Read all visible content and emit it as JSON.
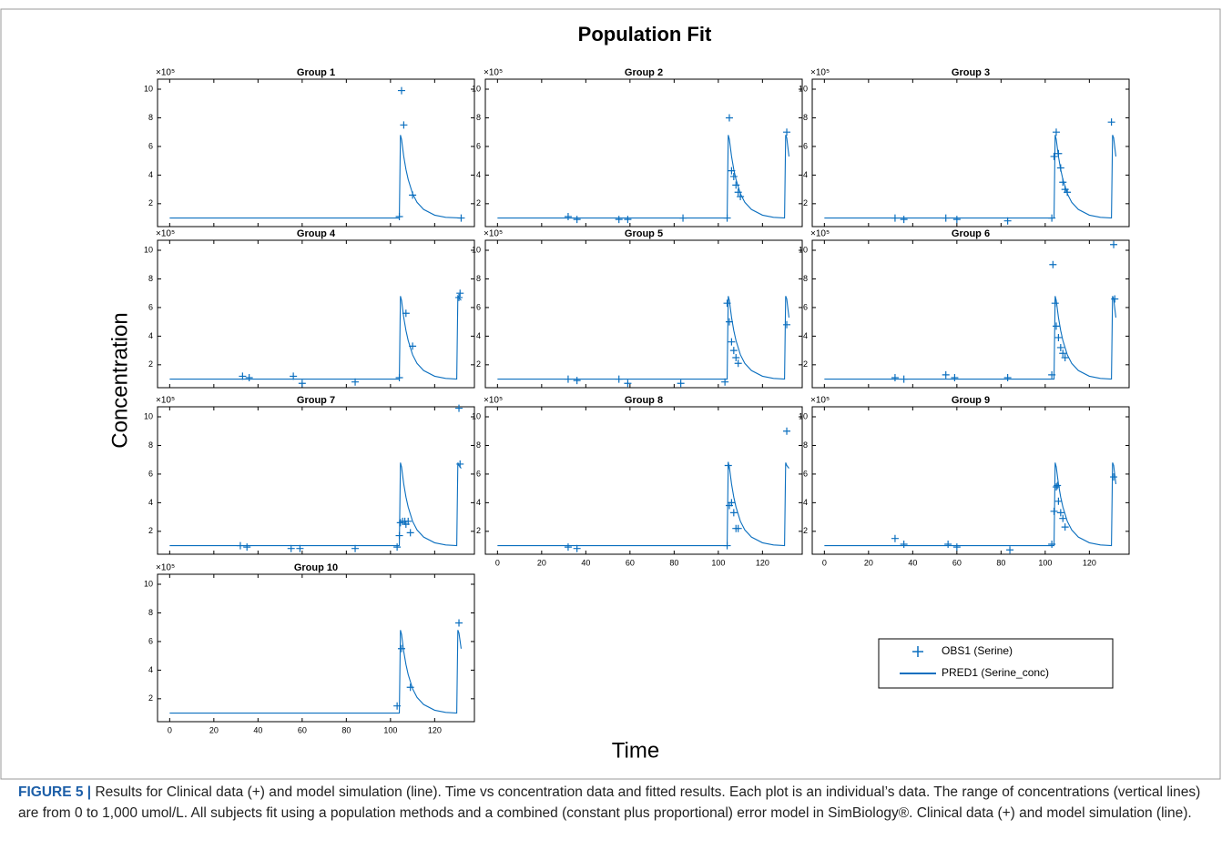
{
  "title": "Population Fit",
  "xlabel": "Time",
  "ylabel": "Concentration",
  "legend_position": "lower right",
  "caption": {
    "label": "FIGURE 5 |",
    "text": "Results for Clinical data (+) and model simulation (line). Time vs concentration data and fitted results. Each plot is an individual’s data. The range of concentrations (vertical lines) are from 0 to 1,000 umol/L. All subjects fit using a population methods and a combined (constant plus proportional) error model in SimBiology®. Clinical data (+) and model simulation (line)."
  },
  "chart_data": [
    {
      "type": "line",
      "title": "Group 1",
      "scale_label": "×10⁵",
      "xlim": [
        -5.5,
        138
      ],
      "ylim": [
        0.4,
        10.7
      ],
      "xticks": [
        0,
        20,
        40,
        60,
        80,
        100,
        120
      ],
      "yticks": [
        2,
        4,
        6,
        8,
        10
      ],
      "xticklabels": false,
      "series": [
        {
          "name": "OBS1 (Serine)",
          "type": "scatter",
          "color": "#0b6fbf",
          "x": [
            104,
            105,
            106,
            110,
            132
          ],
          "values": [
            1.1,
            9.9,
            7.5,
            2.6,
            1.0
          ]
        },
        {
          "name": "PRED1 (Serine_conc)",
          "type": "line",
          "color": "#0b6fbf",
          "x": [
            0,
            104,
            104.5,
            105,
            106,
            107,
            108,
            110,
            112,
            115,
            120,
            125,
            132
          ],
          "values": [
            1,
            1,
            6.8,
            6.5,
            5.3,
            4.4,
            3.7,
            2.7,
            2.1,
            1.6,
            1.2,
            1.05,
            1.0
          ]
        }
      ]
    },
    {
      "type": "line",
      "title": "Group 2",
      "scale_label": "×10⁵",
      "xlim": [
        -5.5,
        138
      ],
      "ylim": [
        0.4,
        10.7
      ],
      "xticks": [
        0,
        20,
        40,
        60,
        80,
        100,
        120
      ],
      "yticks": [
        2,
        4,
        6,
        8,
        10
      ],
      "xticklabels": false,
      "series": [
        {
          "name": "OBS1 (Serine)",
          "type": "scatter",
          "color": "#0b6fbf",
          "x": [
            32,
            36,
            55,
            59,
            84,
            104,
            105,
            106,
            107,
            108,
            109,
            110,
            131
          ],
          "values": [
            1.1,
            0.9,
            0.9,
            0.9,
            1.0,
            1.0,
            8.0,
            4.3,
            3.9,
            3.3,
            2.8,
            2.5,
            7.0
          ]
        },
        {
          "name": "PRED1 (Serine_conc)",
          "type": "line",
          "color": "#0b6fbf",
          "x": [
            0,
            104,
            104.5,
            105,
            106,
            107,
            108,
            110,
            112,
            115,
            120,
            125,
            130,
            130.5,
            131,
            132
          ],
          "values": [
            1,
            1,
            6.8,
            6.5,
            5.3,
            4.4,
            3.7,
            2.7,
            2.1,
            1.6,
            1.2,
            1.05,
            1.0,
            6.8,
            6.6,
            5.3
          ]
        }
      ]
    },
    {
      "type": "line",
      "title": "Group 3",
      "scale_label": "×10⁵",
      "xlim": [
        -5.5,
        138
      ],
      "ylim": [
        0.4,
        10.7
      ],
      "xticks": [
        0,
        20,
        40,
        60,
        80,
        100,
        120
      ],
      "yticks": [
        2,
        4,
        6,
        8,
        10
      ],
      "xticklabels": false,
      "series": [
        {
          "name": "OBS1 (Serine)",
          "type": "scatter",
          "color": "#0b6fbf",
          "x": [
            32,
            36,
            55,
            60,
            83,
            103,
            104,
            105,
            106,
            107,
            108,
            109,
            110,
            130
          ],
          "values": [
            1.0,
            0.9,
            1.0,
            0.9,
            0.8,
            1.0,
            5.3,
            7.0,
            5.5,
            4.5,
            3.5,
            3.0,
            2.8,
            7.7
          ]
        },
        {
          "name": "PRED1 (Serine_conc)",
          "type": "line",
          "color": "#0b6fbf",
          "x": [
            0,
            104,
            104.5,
            105,
            106,
            107,
            108,
            110,
            112,
            115,
            120,
            125,
            130,
            130.5,
            131,
            132
          ],
          "values": [
            1,
            1,
            6.8,
            6.5,
            5.3,
            4.4,
            3.7,
            2.7,
            2.1,
            1.6,
            1.2,
            1.05,
            1.0,
            6.8,
            6.6,
            5.3
          ]
        }
      ]
    },
    {
      "type": "line",
      "title": "Group 4",
      "scale_label": "×10⁵",
      "xlim": [
        -5.5,
        138
      ],
      "ylim": [
        0.4,
        10.7
      ],
      "xticks": [
        0,
        20,
        40,
        60,
        80,
        100,
        120
      ],
      "yticks": [
        2,
        4,
        6,
        8,
        10
      ],
      "xticklabels": false,
      "series": [
        {
          "name": "OBS1 (Serine)",
          "type": "scatter",
          "color": "#0b6fbf",
          "x": [
            33,
            36,
            56,
            60,
            84,
            104,
            107,
            110,
            131,
            131.5
          ],
          "values": [
            1.2,
            1.1,
            1.2,
            0.7,
            0.8,
            1.1,
            5.6,
            3.3,
            6.7,
            7.0
          ]
        },
        {
          "name": "PRED1 (Serine_conc)",
          "type": "line",
          "color": "#0b6fbf",
          "x": [
            0,
            104,
            104.5,
            105,
            106,
            107,
            108,
            110,
            112,
            115,
            120,
            125,
            130,
            130.5,
            131,
            132
          ],
          "values": [
            1,
            1,
            6.8,
            6.5,
            5.3,
            4.4,
            3.7,
            2.7,
            2.1,
            1.6,
            1.2,
            1.05,
            1.0,
            6.8,
            6.7,
            6.5
          ]
        }
      ]
    },
    {
      "type": "line",
      "title": "Group 5",
      "scale_label": "×10⁵",
      "xlim": [
        -5.5,
        138
      ],
      "ylim": [
        0.4,
        10.7
      ],
      "xticks": [
        0,
        20,
        40,
        60,
        80,
        100,
        120
      ],
      "yticks": [
        2,
        4,
        6,
        8,
        10
      ],
      "xticklabels": false,
      "series": [
        {
          "name": "OBS1 (Serine)",
          "type": "scatter",
          "color": "#0b6fbf",
          "x": [
            32,
            36,
            55,
            59,
            83,
            103,
            104,
            105,
            106,
            107,
            108,
            109,
            131
          ],
          "values": [
            1.0,
            0.9,
            1.0,
            0.7,
            0.7,
            0.8,
            6.3,
            5.0,
            3.6,
            3.0,
            2.5,
            2.1,
            4.8
          ]
        },
        {
          "name": "PRED1 (Serine_conc)",
          "type": "line",
          "color": "#0b6fbf",
          "x": [
            0,
            104,
            104.5,
            105,
            106,
            107,
            108,
            110,
            112,
            115,
            120,
            125,
            130,
            130.5,
            131,
            132
          ],
          "values": [
            1,
            1,
            6.8,
            6.5,
            5.3,
            4.4,
            3.7,
            2.7,
            2.1,
            1.6,
            1.2,
            1.05,
            1.0,
            6.8,
            6.6,
            5.3
          ]
        }
      ]
    },
    {
      "type": "line",
      "title": "Group 6",
      "scale_label": "×10⁵",
      "xlim": [
        -5.5,
        138
      ],
      "ylim": [
        0.4,
        10.7
      ],
      "xticks": [
        0,
        20,
        40,
        60,
        80,
        100,
        120
      ],
      "yticks": [
        2,
        4,
        6,
        8,
        10
      ],
      "xticklabels": false,
      "series": [
        {
          "name": "OBS1 (Serine)",
          "type": "scatter",
          "color": "#0b6fbf",
          "x": [
            32,
            36,
            55,
            59,
            83,
            103,
            103.5,
            104.5,
            105,
            106,
            107,
            108,
            109,
            131,
            131.5
          ],
          "values": [
            1.1,
            1.0,
            1.3,
            1.1,
            1.1,
            1.3,
            9.0,
            6.3,
            4.7,
            3.9,
            3.2,
            2.8,
            2.5,
            10.4,
            6.6
          ]
        },
        {
          "name": "PRED1 (Serine_conc)",
          "type": "line",
          "color": "#0b6fbf",
          "x": [
            0,
            104,
            104.5,
            105,
            106,
            107,
            108,
            110,
            112,
            115,
            120,
            125,
            130,
            130.5,
            131,
            132
          ],
          "values": [
            1,
            1,
            6.8,
            6.5,
            5.3,
            4.4,
            3.7,
            2.7,
            2.1,
            1.6,
            1.2,
            1.05,
            1.0,
            6.8,
            6.6,
            5.3
          ]
        }
      ]
    },
    {
      "type": "line",
      "title": "Group 7",
      "scale_label": "×10⁵",
      "xlim": [
        -5.5,
        138
      ],
      "ylim": [
        0.4,
        10.7
      ],
      "xticks": [
        0,
        20,
        40,
        60,
        80,
        100,
        120
      ],
      "yticks": [
        2,
        4,
        6,
        8,
        10
      ],
      "xticklabels": false,
      "series": [
        {
          "name": "OBS1 (Serine)",
          "type": "scatter",
          "color": "#0b6fbf",
          "x": [
            32,
            35,
            55,
            59,
            84,
            103,
            104,
            104.5,
            105.5,
            106.5,
            107,
            108,
            109,
            131,
            131.5
          ],
          "values": [
            1.0,
            0.9,
            0.8,
            0.8,
            0.8,
            0.9,
            1.7,
            2.6,
            2.7,
            2.7,
            2.5,
            2.7,
            1.9,
            10.6,
            6.7
          ]
        },
        {
          "name": "PRED1 (Serine_conc)",
          "type": "line",
          "color": "#0b6fbf",
          "x": [
            0,
            104,
            104.5,
            105,
            106,
            107,
            108,
            110,
            112,
            115,
            120,
            125,
            130,
            130.5,
            131,
            132
          ],
          "values": [
            1,
            1,
            6.8,
            6.5,
            5.3,
            4.4,
            3.7,
            2.7,
            2.1,
            1.6,
            1.2,
            1.05,
            1.0,
            6.8,
            6.6,
            6.4
          ]
        }
      ]
    },
    {
      "type": "line",
      "title": "Group 8",
      "scale_label": "×10⁵",
      "xlim": [
        -5.5,
        138
      ],
      "ylim": [
        0.4,
        10.7
      ],
      "xticks": [
        0,
        20,
        40,
        60,
        80,
        100,
        120
      ],
      "yticks": [
        2,
        4,
        6,
        8,
        10
      ],
      "xticklabels": true,
      "series": [
        {
          "name": "OBS1 (Serine)",
          "type": "scatter",
          "color": "#0b6fbf",
          "x": [
            32,
            36,
            104,
            104.5,
            105,
            106,
            107,
            108,
            109,
            131
          ],
          "values": [
            0.9,
            0.8,
            1.0,
            6.6,
            3.8,
            4.0,
            3.3,
            2.2,
            2.2,
            9.0
          ]
        },
        {
          "name": "PRED1 (Serine_conc)",
          "type": "line",
          "color": "#0b6fbf",
          "x": [
            0,
            104,
            104.5,
            105,
            106,
            107,
            108,
            110,
            112,
            115,
            120,
            125,
            130,
            130.5,
            131,
            132
          ],
          "values": [
            1,
            1,
            6.8,
            6.5,
            5.3,
            4.4,
            3.7,
            2.7,
            2.1,
            1.6,
            1.2,
            1.05,
            1.0,
            6.8,
            6.6,
            6.4
          ]
        }
      ]
    },
    {
      "type": "line",
      "title": "Group 9",
      "scale_label": "×10⁵",
      "xlim": [
        -5.5,
        138
      ],
      "ylim": [
        0.4,
        10.7
      ],
      "xticks": [
        0,
        20,
        40,
        60,
        80,
        100,
        120
      ],
      "yticks": [
        2,
        4,
        6,
        8,
        10
      ],
      "xticklabels": true,
      "series": [
        {
          "name": "OBS1 (Serine)",
          "type": "scatter",
          "color": "#0b6fbf",
          "x": [
            32,
            36,
            56,
            60,
            84,
            103,
            104,
            105,
            105.5,
            106,
            107,
            108,
            109,
            131
          ],
          "values": [
            1.5,
            1.1,
            1.1,
            0.9,
            0.7,
            1.1,
            3.4,
            5.1,
            5.2,
            4.1,
            3.3,
            2.9,
            2.3,
            5.8
          ]
        },
        {
          "name": "PRED1 (Serine_conc)",
          "type": "line",
          "color": "#0b6fbf",
          "x": [
            0,
            104,
            104.5,
            105,
            106,
            107,
            108,
            110,
            112,
            115,
            120,
            125,
            130,
            130.5,
            131,
            132
          ],
          "values": [
            1,
            1,
            6.8,
            6.5,
            5.3,
            4.4,
            3.7,
            2.7,
            2.1,
            1.6,
            1.2,
            1.05,
            1.0,
            6.8,
            6.6,
            5.3
          ]
        }
      ]
    },
    {
      "type": "line",
      "title": "Group 10",
      "scale_label": "×10⁵",
      "xlim": [
        -5.5,
        138
      ],
      "ylim": [
        0.4,
        10.7
      ],
      "xticks": [
        0,
        20,
        40,
        60,
        80,
        100,
        120
      ],
      "yticks": [
        2,
        4,
        6,
        8,
        10
      ],
      "xticklabels": true,
      "series": [
        {
          "name": "OBS1 (Serine)",
          "type": "scatter",
          "color": "#0b6fbf",
          "x": [
            103,
            105,
            109,
            131
          ],
          "values": [
            1.5,
            5.5,
            2.8,
            7.3
          ]
        },
        {
          "name": "PRED1 (Serine_conc)",
          "type": "line",
          "color": "#0b6fbf",
          "x": [
            0,
            104,
            104.5,
            105,
            106,
            107,
            108,
            110,
            112,
            115,
            120,
            125,
            130,
            130.5,
            131,
            132
          ],
          "values": [
            1,
            1,
            6.8,
            6.5,
            5.3,
            4.4,
            3.7,
            2.7,
            2.1,
            1.6,
            1.2,
            1.05,
            1.0,
            6.8,
            6.6,
            5.5
          ]
        }
      ]
    }
  ]
}
